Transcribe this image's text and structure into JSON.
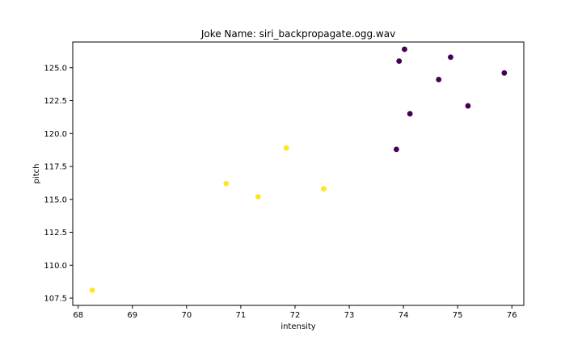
{
  "chart_data": {
    "type": "scatter",
    "title": "Joke Name: siri_backpropagate.ogg.wav",
    "xlabel": "intensity",
    "ylabel": "pitch",
    "xlim": [
      67.9,
      76.22
    ],
    "ylim": [
      106.95,
      126.95
    ],
    "x_ticks": [
      "68",
      "69",
      "70",
      "71",
      "72",
      "73",
      "74",
      "75",
      "76"
    ],
    "y_ticks": [
      "107.5",
      "110.0",
      "112.5",
      "115.0",
      "117.5",
      "120.0",
      "122.5",
      "125.0"
    ],
    "grid": false,
    "legend": "none",
    "colors": {
      "class_a": "#440154",
      "class_b": "#fde725"
    },
    "series": [
      {
        "color": "#440154",
        "points": [
          {
            "x": 74.02,
            "y": 126.4
          },
          {
            "x": 73.92,
            "y": 125.5
          },
          {
            "x": 74.87,
            "y": 125.8
          },
          {
            "x": 74.65,
            "y": 124.1
          },
          {
            "x": 75.86,
            "y": 124.6
          },
          {
            "x": 75.19,
            "y": 122.1
          },
          {
            "x": 74.12,
            "y": 121.5
          },
          {
            "x": 73.87,
            "y": 118.8
          }
        ]
      },
      {
        "color": "#fde725",
        "points": [
          {
            "x": 71.84,
            "y": 118.9
          },
          {
            "x": 70.73,
            "y": 116.2
          },
          {
            "x": 71.32,
            "y": 115.2
          },
          {
            "x": 72.53,
            "y": 115.8
          },
          {
            "x": 68.26,
            "y": 108.1
          }
        ]
      }
    ]
  }
}
